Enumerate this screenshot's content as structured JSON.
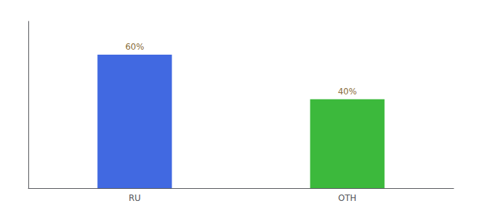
{
  "chart_data": {
    "type": "bar",
    "categories": [
      "RU",
      "OTH"
    ],
    "values": [
      60,
      40
    ],
    "value_labels": [
      "60%",
      "40%"
    ],
    "colors": [
      "#4169e1",
      "#3cb93c"
    ],
    "ylim": [
      0,
      75
    ],
    "data_labels": true,
    "tick_labels": "x",
    "grid": false
  }
}
